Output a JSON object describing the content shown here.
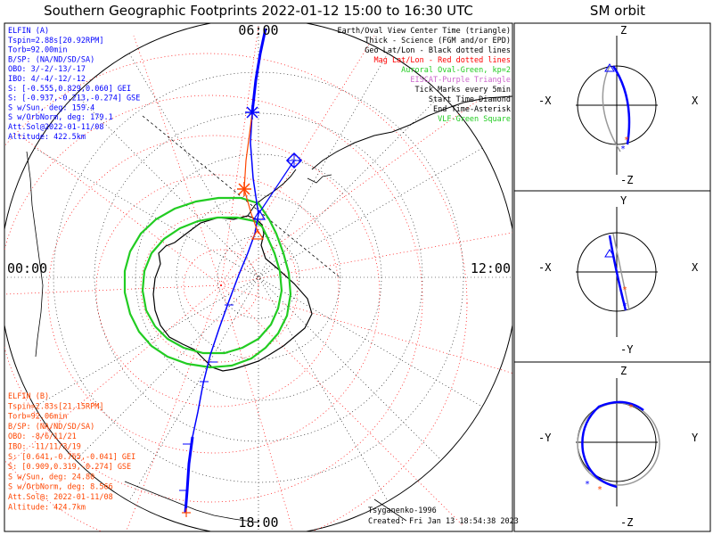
{
  "header": {
    "title": "Southern Geographic Footprints 2022-01-12 15:00 to 16:30 UTC",
    "orbit_title": "SM orbit"
  },
  "map": {
    "hour_labels": {
      "top": "06:00",
      "left": "00:00",
      "right": "12:00",
      "bottom": "18:00"
    }
  },
  "elfin_a": {
    "color": "#0000ff",
    "lines": [
      "ELFIN (A)",
      "Tspin=2.88s[20.92RPM]",
      "Torb=92.00min",
      "B/SP: (NA/ND/SD/SA)",
      "OBO: 3/-2/-13/-17",
      "IBO: 4/-4/-12/-12",
      "S: [-0.555,0.829,0.060] GEI",
      "S: [-0.937,-0.213,-0.274] GSE",
      "S w/Sun, deg: 159.4",
      "S w/OrbNorm, deg: 179.1",
      "Att.Sol@2022-01-11/08",
      "Altitude: 422.5km"
    ]
  },
  "elfin_b": {
    "color": "#ff4500",
    "lines": [
      "ELFIN (B)",
      "Tspin=2.83s[21.15RPM]",
      "Torb=92.06min",
      "B/SP: (NA/ND/SD/SA)",
      "OBO: -8/6/11/21",
      "IBO: -11/11/3/19",
      "S: [0.641,-0.765,-0.041] GEI",
      "S: [0.909,0.319,-0.274] GSE",
      "S w/Sun, deg: 24.80",
      "S w/OrbNorm, deg: 8.566",
      "Att.Sol@: 2022-01-11/08",
      "Altitude: 424.7km"
    ]
  },
  "legend": [
    {
      "text": "Earth/Oval View Center Time (triangle)",
      "color": "#000000"
    },
    {
      "text": "Thick - Science (FGM and/or EPD)",
      "color": "#000000"
    },
    {
      "text": "Geo Lat/Lon - Black dotted lines",
      "color": "#000000"
    },
    {
      "text": "Mag Lat/Lon - Red dotted lines",
      "color": "#ff0000"
    },
    {
      "text": "Auroral Oval-Green, kp=2",
      "color": "#22cc22"
    },
    {
      "text": "EISCAT-Purple Triangle",
      "color": "#cc66cc"
    },
    {
      "text": "Tick Marks every 5min",
      "color": "#000000"
    },
    {
      "text": "Start Time-Diamond",
      "color": "#000000"
    },
    {
      "text": "End Time-Asterisk",
      "color": "#000000"
    },
    {
      "text": "VLF-Green Square",
      "color": "#22cc22"
    }
  ],
  "credits": {
    "author": "Tsyganenko-1996",
    "created": "Created: Fri Jan 13 18:54:38 2023"
  },
  "orbit_panels": [
    {
      "top": "Z",
      "bottom": "-Z",
      "left": "-X",
      "right": "X"
    },
    {
      "top": "Y",
      "bottom": "-Y",
      "left": "-X",
      "right": "X"
    },
    {
      "top": "Z",
      "bottom": "-Z",
      "left": "-Y",
      "right": "Y"
    }
  ],
  "colors": {
    "elfin_a": "#0000ff",
    "elfin_b": "#ff4500",
    "mag_grid": "#ff0000",
    "oval": "#22cc22",
    "ground_track": "#999999"
  }
}
